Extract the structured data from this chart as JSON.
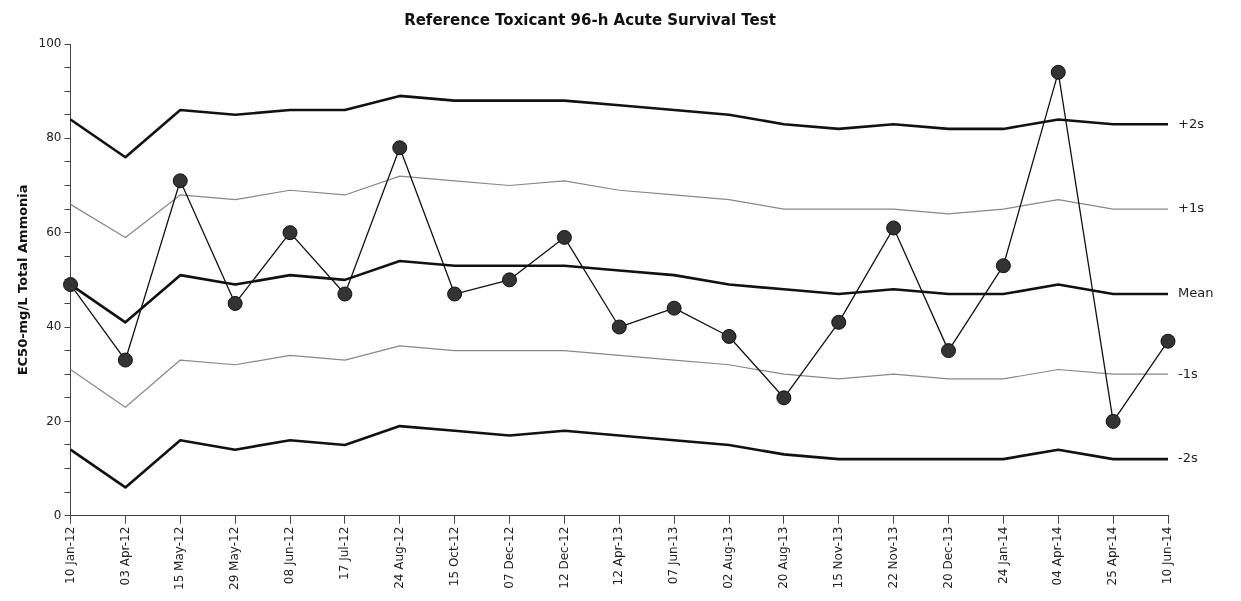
{
  "chart_data": {
    "type": "line",
    "title": "Reference Toxicant 96-h Acute Survival Test",
    "ylabel": "EC50-mg/L Total Ammonia",
    "categories": [
      "10 Jan-12",
      "03 Apr-12",
      "15 May-12",
      "29 May-12",
      "08 Jun-12",
      "17 Jul-12",
      "24 Aug-12",
      "15 Oct-12",
      "07 Dec-12",
      "12 Dec-12",
      "12 Apr-13",
      "07 Jun-13",
      "02 Aug-13",
      "20 Aug-13",
      "15 Nov-13",
      "22 Nov-13",
      "20 Dec-13",
      "24 Jan-14",
      "04 Apr-14",
      "25 Apr-14",
      "10 Jun-14"
    ],
    "series": [
      {
        "color": "#111111",
        "marker": "circle",
        "values": [
          49,
          33,
          71,
          45,
          60,
          47,
          78,
          47,
          50,
          59,
          40,
          44,
          38,
          25,
          41,
          61,
          35,
          53,
          94,
          20,
          37
        ]
      },
      {
        "name": "+2s",
        "color": "#111111",
        "marker": "none",
        "values": [
          84,
          76,
          86,
          85,
          86,
          86,
          89,
          88,
          88,
          88,
          87,
          86,
          85,
          83,
          82,
          83,
          82,
          82,
          84,
          83,
          83
        ]
      },
      {
        "name": "+1s",
        "color": "#888888",
        "marker": "none",
        "values": [
          66,
          59,
          68,
          67,
          69,
          68,
          72,
          71,
          70,
          71,
          69,
          68,
          67,
          65,
          65,
          65,
          64,
          65,
          67,
          65,
          65
        ]
      },
      {
        "name": "Mean",
        "color": "#111111",
        "marker": "none",
        "values": [
          49,
          41,
          51,
          49,
          51,
          50,
          54,
          53,
          53,
          53,
          52,
          51,
          49,
          48,
          47,
          48,
          47,
          47,
          49,
          47,
          47
        ]
      },
      {
        "name": "-1s",
        "color": "#888888",
        "marker": "none",
        "values": [
          31,
          23,
          33,
          32,
          34,
          33,
          36,
          35,
          35,
          35,
          34,
          33,
          32,
          30,
          29,
          30,
          29,
          29,
          31,
          30,
          30
        ]
      },
      {
        "name": "-2s",
        "color": "#111111",
        "marker": "none",
        "values": [
          14,
          6,
          16,
          14,
          16,
          15,
          19,
          18,
          17,
          18,
          17,
          16,
          15,
          13,
          12,
          12,
          12,
          12,
          14,
          12,
          12
        ]
      }
    ],
    "ylim": [
      0,
      100
    ],
    "yticks": [
      0,
      {
        "value": 5,
        "label": null
      },
      {
        "value": 10,
        "label": null
      },
      {
        "value": 15,
        "label": null
      },
      20,
      {
        "value": 25,
        "label": null
      },
      {
        "value": 30,
        "label": null
      },
      {
        "value": 35,
        "label": null
      },
      40,
      {
        "value": 45,
        "label": null
      },
      {
        "value": 50,
        "label": null
      },
      {
        "value": 55,
        "label": null
      },
      60,
      {
        "value": 65,
        "label": null
      },
      {
        "value": 70,
        "label": null
      },
      {
        "value": 75,
        "label": null
      },
      80,
      {
        "value": 85,
        "label": null
      },
      {
        "value": 90,
        "label": null
      },
      {
        "value": 95,
        "label": null
      },
      100
    ],
    "grid": false,
    "legend": false
  }
}
